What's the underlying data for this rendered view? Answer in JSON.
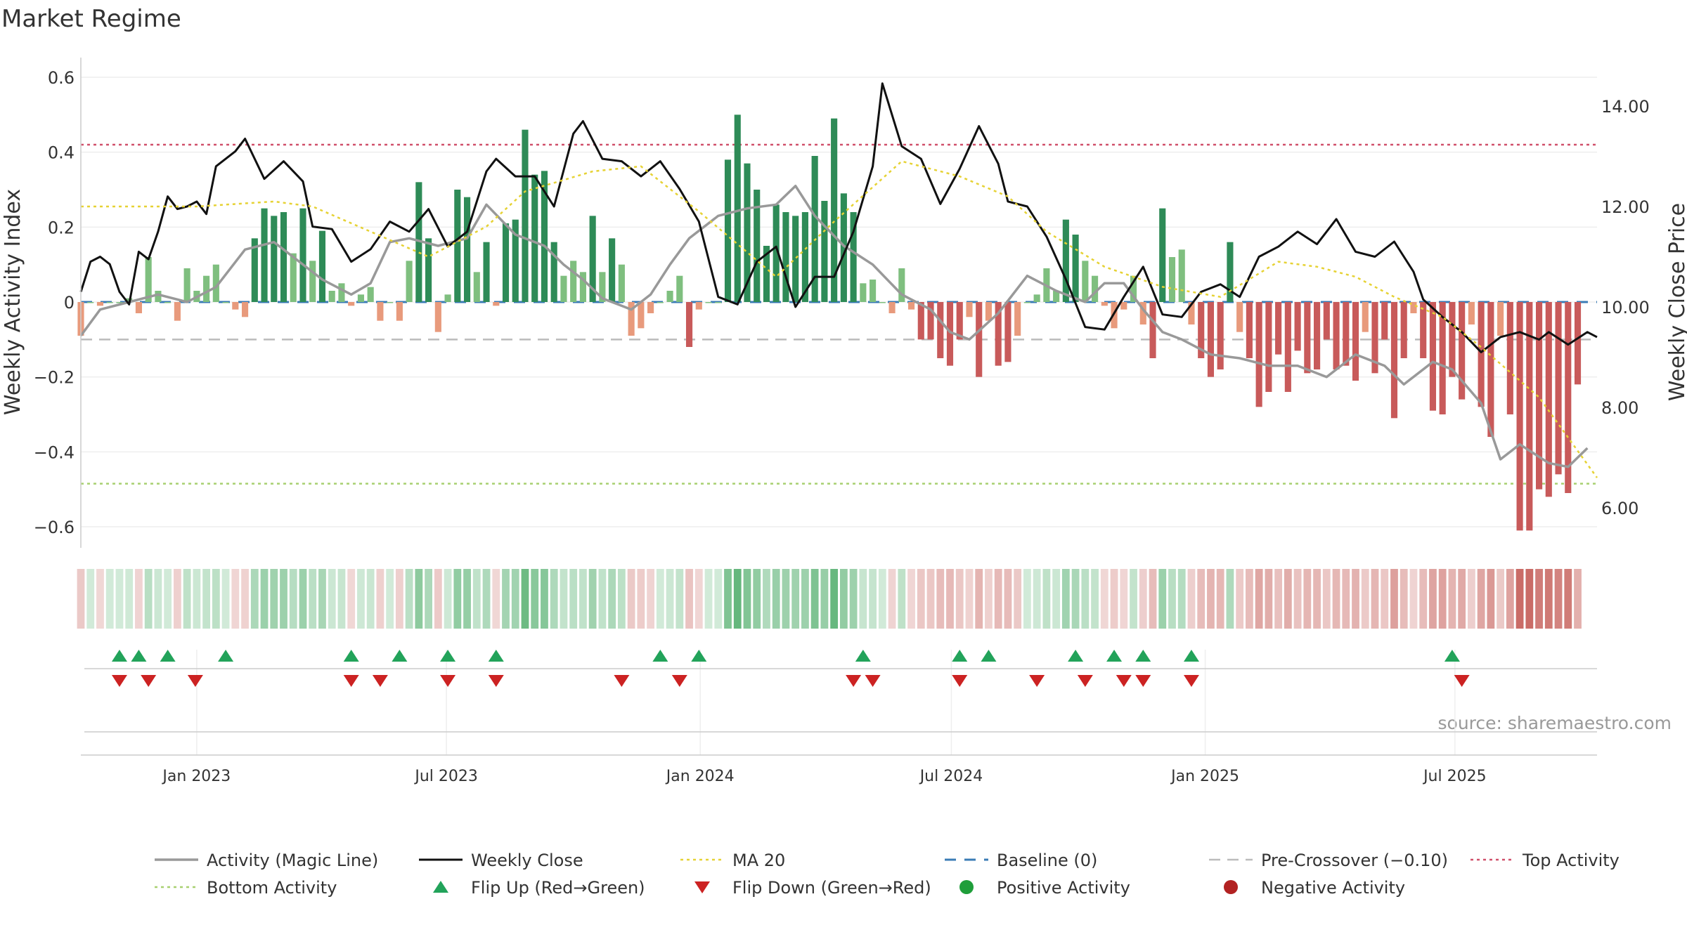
{
  "chart_data": {
    "type": "bar",
    "title": "Market Regime",
    "ylabel_left": "Weekly Activity Index",
    "ylabel_right": "Weekly Close Price",
    "source": "source: sharemaestro.com",
    "ylim_left": [
      -0.65,
      0.6
    ],
    "ylim_right": [
      5.2,
      14.5
    ],
    "yticks_left": [
      0.6,
      0.4,
      0.2,
      0,
      -0.2,
      -0.4,
      -0.6
    ],
    "ytick_labels_left": [
      "0.6",
      "0.4",
      "0.2",
      "0",
      "−0.2",
      "−0.4",
      "−0.6"
    ],
    "yticks_right": [
      14,
      12,
      10,
      8,
      6
    ],
    "ytick_labels_right": [
      "14.00",
      "12.00",
      "10.00",
      "8.00",
      "6.00"
    ],
    "x_range": [
      "2022-10-09",
      "2025-10-12"
    ],
    "x_ticks": [
      "2023-01-01",
      "2023-07-01",
      "2024-01-01",
      "2024-07-01",
      "2025-01-01",
      "2025-07-01"
    ],
    "x_tick_labels": [
      "Jan 2023",
      "Jul 2023",
      "Jan 2024",
      "Jul 2024",
      "Jan 2025",
      "Jul 2025"
    ],
    "reference_lines": {
      "top_activity": 0.42,
      "bottom_activity": -0.485,
      "baseline": 0,
      "pre_crossover": -0.1
    },
    "colors": {
      "strong_pos": "#2e8b57",
      "light_pos": "#7fbf7f",
      "strong_neg": "#c85a5a",
      "light_neg": "#e89a7c",
      "activity_line": "#999999",
      "close_line": "#111111",
      "ma_line": "#e6d234",
      "baseline": "#3a7bb5",
      "pre_crossover": "#bbbbbb",
      "top_line": "#d0506a",
      "bottom_line": "#a8d070",
      "flip_up": "#22a35a",
      "flip_down": "#cc2222"
    },
    "bars": {
      "start": "2022-10-09",
      "step_days": 7,
      "values": [
        -0.09,
        0.0,
        -0.01,
        0.0,
        0.0,
        0.01,
        -0.03,
        0.12,
        0.03,
        0.0,
        -0.05,
        0.09,
        0.03,
        0.07,
        0.1,
        0.0,
        -0.02,
        -0.04,
        0.17,
        0.25,
        0.23,
        0.24,
        0.13,
        0.25,
        0.11,
        0.19,
        0.03,
        0.05,
        -0.01,
        0.02,
        0.04,
        -0.05,
        0.0,
        -0.05,
        0.11,
        0.32,
        0.17,
        -0.08,
        0.02,
        0.3,
        0.28,
        0.08,
        0.16,
        -0.01,
        0.21,
        0.22,
        0.46,
        0.34,
        0.35,
        0.16,
        0.07,
        0.11,
        0.08,
        0.23,
        0.08,
        0.17,
        0.1,
        -0.09,
        -0.07,
        -0.03,
        0.0,
        0.03,
        0.07,
        -0.12,
        -0.02,
        0.0,
        0.0,
        0.38,
        0.5,
        0.37,
        0.3,
        0.15,
        0.26,
        0.24,
        0.23,
        0.24,
        0.39,
        0.27,
        0.49,
        0.29,
        0.24,
        0.05,
        0.06,
        0.0,
        -0.03,
        0.09,
        -0.02,
        -0.1,
        -0.1,
        -0.15,
        -0.17,
        -0.1,
        -0.04,
        -0.2,
        -0.05,
        -0.17,
        -0.16,
        -0.09,
        0.0,
        0.02,
        0.09,
        0.03,
        0.22,
        0.18,
        0.11,
        0.07,
        -0.01,
        -0.07,
        -0.02,
        0.07,
        -0.06,
        -0.15,
        0.25,
        0.12,
        0.14,
        -0.06,
        -0.15,
        -0.2,
        -0.18,
        0.16,
        -0.08,
        -0.15,
        -0.28,
        -0.24,
        -0.14,
        -0.24,
        -0.13,
        -0.19,
        -0.18,
        -0.1,
        -0.18,
        -0.17,
        -0.21,
        -0.08,
        -0.19,
        -0.1,
        -0.31,
        -0.15,
        -0.03,
        -0.15,
        -0.29,
        -0.3,
        -0.2,
        -0.26,
        -0.06,
        -0.28,
        -0.36,
        -0.09,
        -0.3,
        -0.61,
        -0.61,
        -0.5,
        -0.52,
        -0.46,
        -0.51,
        -0.22
      ]
    },
    "series": [
      {
        "name": "Activity (Magic Line)",
        "kind": "line",
        "axis": "left",
        "points": [
          [
            "2022-10-09",
            -0.09
          ],
          [
            "2022-10-23",
            -0.02
          ],
          [
            "2022-11-13",
            0.0
          ],
          [
            "2022-12-04",
            0.02
          ],
          [
            "2022-12-25",
            0.0
          ],
          [
            "2023-01-15",
            0.04
          ],
          [
            "2023-02-05",
            0.14
          ],
          [
            "2023-02-26",
            0.16
          ],
          [
            "2023-03-12",
            0.12
          ],
          [
            "2023-04-02",
            0.06
          ],
          [
            "2023-04-23",
            0.02
          ],
          [
            "2023-05-07",
            0.05
          ],
          [
            "2023-05-21",
            0.16
          ],
          [
            "2023-06-04",
            0.17
          ],
          [
            "2023-06-25",
            0.15
          ],
          [
            "2023-07-16",
            0.17
          ],
          [
            "2023-07-30",
            0.26
          ],
          [
            "2023-08-20",
            0.18
          ],
          [
            "2023-09-10",
            0.15
          ],
          [
            "2023-09-24",
            0.1
          ],
          [
            "2023-10-08",
            0.06
          ],
          [
            "2023-10-22",
            0.01
          ],
          [
            "2023-11-12",
            -0.02
          ],
          [
            "2023-11-26",
            0.02
          ],
          [
            "2023-12-10",
            0.1
          ],
          [
            "2023-12-24",
            0.17
          ],
          [
            "2024-01-14",
            0.23
          ],
          [
            "2024-02-04",
            0.25
          ],
          [
            "2024-02-25",
            0.26
          ],
          [
            "2024-03-10",
            0.31
          ],
          [
            "2024-03-24",
            0.23
          ],
          [
            "2024-04-14",
            0.15
          ],
          [
            "2024-05-05",
            0.1
          ],
          [
            "2024-05-26",
            0.02
          ],
          [
            "2024-06-16",
            -0.02
          ],
          [
            "2024-06-30",
            -0.08
          ],
          [
            "2024-07-14",
            -0.1
          ],
          [
            "2024-08-04",
            -0.03
          ],
          [
            "2024-08-25",
            0.07
          ],
          [
            "2024-09-15",
            0.03
          ],
          [
            "2024-10-06",
            0.0
          ],
          [
            "2024-10-20",
            0.05
          ],
          [
            "2024-11-03",
            0.05
          ],
          [
            "2024-11-17",
            -0.02
          ],
          [
            "2024-12-01",
            -0.08
          ],
          [
            "2024-12-15",
            -0.1
          ],
          [
            "2025-01-05",
            -0.14
          ],
          [
            "2025-01-26",
            -0.15
          ],
          [
            "2025-02-16",
            -0.17
          ],
          [
            "2025-03-09",
            -0.17
          ],
          [
            "2025-03-30",
            -0.2
          ],
          [
            "2025-04-20",
            -0.14
          ],
          [
            "2025-05-11",
            -0.17
          ],
          [
            "2025-05-25",
            -0.22
          ],
          [
            "2025-06-15",
            -0.16
          ],
          [
            "2025-06-29",
            -0.18
          ],
          [
            "2025-07-20",
            -0.27
          ],
          [
            "2025-08-03",
            -0.42
          ],
          [
            "2025-08-17",
            -0.38
          ],
          [
            "2025-09-07",
            -0.43
          ],
          [
            "2025-09-21",
            -0.44
          ],
          [
            "2025-10-05",
            -0.39
          ]
        ]
      },
      {
        "name": "Weekly Close",
        "kind": "line",
        "axis": "right",
        "points": [
          [
            "2022-10-09",
            10.3
          ],
          [
            "2022-10-16",
            10.9
          ],
          [
            "2022-10-23",
            11.0
          ],
          [
            "2022-10-30",
            10.85
          ],
          [
            "2022-11-06",
            10.3
          ],
          [
            "2022-11-13",
            10.05
          ],
          [
            "2022-11-20",
            11.1
          ],
          [
            "2022-11-27",
            10.95
          ],
          [
            "2022-12-04",
            11.5
          ],
          [
            "2022-12-11",
            12.2
          ],
          [
            "2022-12-18",
            11.95
          ],
          [
            "2022-12-25",
            12.0
          ],
          [
            "2023-01-01",
            12.1
          ],
          [
            "2023-01-08",
            11.85
          ],
          [
            "2023-01-15",
            12.8
          ],
          [
            "2023-01-29",
            13.1
          ],
          [
            "2023-02-05",
            13.35
          ],
          [
            "2023-02-19",
            12.55
          ],
          [
            "2023-03-05",
            12.9
          ],
          [
            "2023-03-19",
            12.5
          ],
          [
            "2023-03-26",
            11.6
          ],
          [
            "2023-04-09",
            11.55
          ],
          [
            "2023-04-23",
            10.9
          ],
          [
            "2023-05-07",
            11.15
          ],
          [
            "2023-05-21",
            11.7
          ],
          [
            "2023-06-04",
            11.5
          ],
          [
            "2023-06-18",
            11.95
          ],
          [
            "2023-07-02",
            11.2
          ],
          [
            "2023-07-16",
            11.5
          ],
          [
            "2023-07-30",
            12.7
          ],
          [
            "2023-08-06",
            12.95
          ],
          [
            "2023-08-20",
            12.6
          ],
          [
            "2023-09-03",
            12.6
          ],
          [
            "2023-09-17",
            12.0
          ],
          [
            "2023-10-01",
            13.45
          ],
          [
            "2023-10-08",
            13.7
          ],
          [
            "2023-10-22",
            12.95
          ],
          [
            "2023-11-05",
            12.9
          ],
          [
            "2023-11-19",
            12.6
          ],
          [
            "2023-12-03",
            12.9
          ],
          [
            "2023-12-17",
            12.35
          ],
          [
            "2023-12-31",
            11.7
          ],
          [
            "2024-01-14",
            10.2
          ],
          [
            "2024-01-28",
            10.05
          ],
          [
            "2024-02-11",
            10.9
          ],
          [
            "2024-02-25",
            11.2
          ],
          [
            "2024-03-10",
            10.0
          ],
          [
            "2024-03-24",
            10.6
          ],
          [
            "2024-04-07",
            10.6
          ],
          [
            "2024-04-21",
            11.5
          ],
          [
            "2024-05-05",
            12.8
          ],
          [
            "2024-05-12",
            14.45
          ],
          [
            "2024-05-26",
            13.2
          ],
          [
            "2024-06-09",
            12.95
          ],
          [
            "2024-06-23",
            12.05
          ],
          [
            "2024-07-07",
            12.75
          ],
          [
            "2024-07-21",
            13.6
          ],
          [
            "2024-08-04",
            12.85
          ],
          [
            "2024-08-11",
            12.1
          ],
          [
            "2024-08-25",
            12.0
          ],
          [
            "2024-09-08",
            11.4
          ],
          [
            "2024-09-22",
            10.55
          ],
          [
            "2024-10-06",
            9.6
          ],
          [
            "2024-10-20",
            9.55
          ],
          [
            "2024-11-03",
            10.2
          ],
          [
            "2024-11-17",
            10.8
          ],
          [
            "2024-12-01",
            9.85
          ],
          [
            "2024-12-15",
            9.8
          ],
          [
            "2024-12-29",
            10.3
          ],
          [
            "2025-01-12",
            10.45
          ],
          [
            "2025-01-26",
            10.2
          ],
          [
            "2025-02-09",
            11.0
          ],
          [
            "2025-02-23",
            11.2
          ],
          [
            "2025-03-09",
            11.5
          ],
          [
            "2025-03-23",
            11.25
          ],
          [
            "2025-04-06",
            11.75
          ],
          [
            "2025-04-20",
            11.1
          ],
          [
            "2025-05-04",
            11.0
          ],
          [
            "2025-05-18",
            11.3
          ],
          [
            "2025-06-01",
            10.7
          ],
          [
            "2025-06-08",
            10.15
          ],
          [
            "2025-06-22",
            9.8
          ],
          [
            "2025-07-06",
            9.5
          ],
          [
            "2025-07-20",
            9.1
          ],
          [
            "2025-08-03",
            9.4
          ],
          [
            "2025-08-17",
            9.5
          ],
          [
            "2025-08-31",
            9.35
          ],
          [
            "2025-09-07",
            9.5
          ],
          [
            "2025-09-21",
            9.25
          ],
          [
            "2025-10-05",
            9.5
          ],
          [
            "2025-10-12",
            9.4
          ]
        ]
      },
      {
        "name": "MA 20",
        "kind": "line",
        "axis": "right",
        "points": [
          [
            "2022-10-09",
            12.0
          ],
          [
            "2023-01-01",
            12.0
          ],
          [
            "2023-02-26",
            12.1
          ],
          [
            "2023-03-26",
            12.0
          ],
          [
            "2023-05-07",
            11.5
          ],
          [
            "2023-06-18",
            11.0
          ],
          [
            "2023-07-30",
            11.6
          ],
          [
            "2023-08-27",
            12.3
          ],
          [
            "2023-10-15",
            12.7
          ],
          [
            "2023-11-19",
            12.8
          ],
          [
            "2023-12-31",
            11.9
          ],
          [
            "2024-02-25",
            10.6
          ],
          [
            "2024-04-07",
            11.7
          ],
          [
            "2024-05-26",
            12.9
          ],
          [
            "2024-07-07",
            12.6
          ],
          [
            "2024-08-11",
            12.2
          ],
          [
            "2024-09-08",
            11.5
          ],
          [
            "2024-10-20",
            10.8
          ],
          [
            "2024-12-01",
            10.4
          ],
          [
            "2025-01-12",
            10.2
          ],
          [
            "2025-02-23",
            10.9
          ],
          [
            "2025-03-23",
            10.8
          ],
          [
            "2025-04-20",
            10.6
          ],
          [
            "2025-05-18",
            10.2
          ],
          [
            "2025-06-22",
            9.8
          ],
          [
            "2025-07-20",
            9.2
          ],
          [
            "2025-08-31",
            8.2
          ],
          [
            "2025-09-21",
            7.4
          ],
          [
            "2025-10-12",
            6.6
          ]
        ]
      }
    ],
    "markers": {
      "flip_up": [
        "2022-11-06",
        "2022-11-20",
        "2022-12-11",
        "2023-01-22",
        "2023-04-23",
        "2023-05-28",
        "2023-07-02",
        "2023-08-06",
        "2023-12-03",
        "2023-12-31",
        "2024-04-28",
        "2024-07-07",
        "2024-07-28",
        "2024-09-29",
        "2024-10-27",
        "2024-11-17",
        "2024-12-22",
        "2025-06-29"
      ],
      "flip_down": [
        "2022-11-06",
        "2022-11-27",
        "2022-12-31",
        "2023-04-23",
        "2023-05-14",
        "2023-07-02",
        "2023-08-06",
        "2023-11-05",
        "2023-12-17",
        "2024-04-21",
        "2024-05-05",
        "2024-07-07",
        "2024-09-01",
        "2024-10-06",
        "2024-11-03",
        "2024-11-17",
        "2024-12-22",
        "2025-07-06"
      ]
    },
    "legend_placement": "bottom",
    "legend": [
      "Activity (Magic Line)",
      "Weekly Close",
      "MA 20",
      "Baseline (0)",
      "Pre-Crossover (−0.10)",
      "Top Activity",
      "Bottom Activity",
      "Flip Up (Red→Green)",
      "Flip Down (Green→Red)",
      "Positive Activity",
      "Negative Activity"
    ]
  }
}
